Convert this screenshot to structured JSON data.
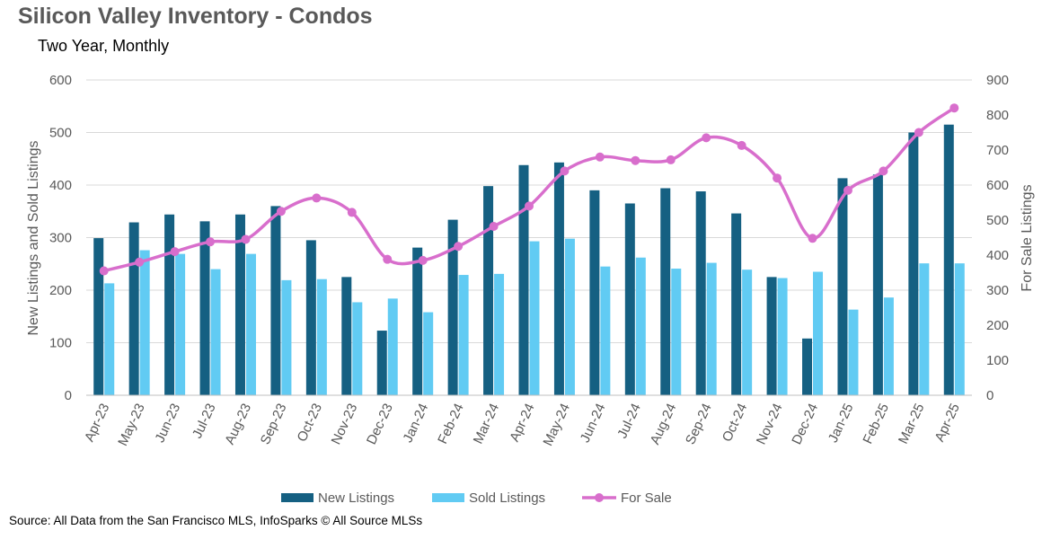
{
  "chart_data": {
    "type": "bar",
    "title": "Silicon Valley Inventory - Condos",
    "subtitle": "Two Year, Monthly",
    "categories": [
      "Apr-23",
      "May-23",
      "Jun-23",
      "Jul-23",
      "Aug-23",
      "Sep-23",
      "Oct-23",
      "Nov-23",
      "Dec-23",
      "Jan-24",
      "Feb-24",
      "Mar-24",
      "Apr-24",
      "May-24",
      "Jun-24",
      "Jul-24",
      "Aug-24",
      "Sep-24",
      "Oct-24",
      "Nov-24",
      "Dec-24",
      "Jan-25",
      "Feb-25",
      "Mar-25",
      "Apr-25"
    ],
    "series": [
      {
        "name": "New Listings",
        "type": "bar",
        "axis": "left",
        "color": "#156082",
        "values": [
          299,
          329,
          344,
          331,
          344,
          360,
          295,
          225,
          123,
          281,
          334,
          398,
          438,
          443,
          390,
          365,
          394,
          388,
          346,
          225,
          108,
          413,
          420,
          500,
          515
        ]
      },
      {
        "name": "Sold Listings",
        "type": "bar",
        "axis": "left",
        "color": "#61CBF3",
        "values": [
          213,
          276,
          269,
          240,
          269,
          219,
          221,
          177,
          184,
          158,
          229,
          231,
          293,
          298,
          245,
          262,
          241,
          252,
          239,
          223,
          235,
          163,
          186,
          251,
          251
        ]
      },
      {
        "name": "For Sale",
        "type": "line",
        "axis": "right",
        "color": "#D86ECC",
        "values": [
          355,
          380,
          410,
          438,
          445,
          525,
          563,
          522,
          388,
          385,
          425,
          482,
          540,
          640,
          680,
          670,
          672,
          735,
          713,
          620,
          448,
          585,
          640,
          750,
          820
        ]
      }
    ],
    "ylabel": "New Listings and Sold Listings",
    "ylim": [
      0,
      600
    ],
    "yticks": [
      0,
      100,
      200,
      300,
      400,
      500,
      600
    ],
    "y2label": "For Sale Listings",
    "y2lim": [
      0,
      900
    ],
    "y2ticks": [
      0,
      100,
      200,
      300,
      400,
      500,
      600,
      700,
      800,
      900
    ],
    "grid": true,
    "legend_position": "bottom"
  },
  "source": "Source: All Data from the San Francisco MLS, InfoSparks © All Source MLSs"
}
